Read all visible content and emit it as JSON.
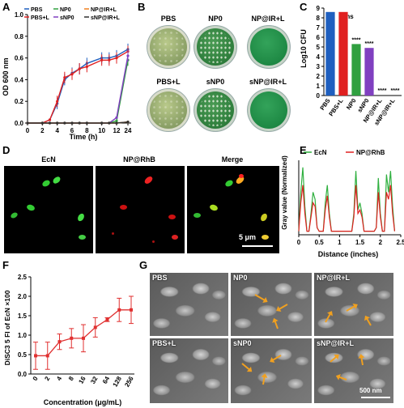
{
  "panels": {
    "A": "A",
    "B": "B",
    "C": "C",
    "D": "D",
    "E": "E",
    "F": "F",
    "G": "G"
  },
  "panelA": {
    "ylabel": "OD 600 nm",
    "xlabel": "Time (h)",
    "legend": [
      "PBS",
      "NP0",
      "NP@IR+L",
      "PBS+L",
      "sNP0",
      "sNP@IR+L"
    ]
  },
  "panelB": {
    "labels": [
      "PBS",
      "NP0",
      "NP@IR+L",
      "PBS+L",
      "sNP0",
      "sNP@IR+L"
    ]
  },
  "panelC": {
    "ylabel": "Log10 CFU",
    "ns": "ns",
    "stars": [
      "****",
      "****",
      "****",
      "****"
    ]
  },
  "panelD": {
    "titles": [
      "EcN",
      "NP@RhB",
      "Merge"
    ],
    "scale": "5 μm"
  },
  "panelE": {
    "ylabel": "Gray value (Normalized)",
    "xlabel": "Distance (inches)",
    "legend": [
      "EcN",
      "NP@RhB"
    ]
  },
  "panelF": {
    "ylabel": "DiSC3 5 FI of EcN ×100",
    "xlabel": "Concentration (μg/mL)"
  },
  "panelG": {
    "labels": [
      "PBS",
      "NP0",
      "NP@IR+L",
      "PBS+L",
      "sNP0",
      "sNP@IR+L"
    ],
    "scale": "500 nm"
  },
  "chart_data": [
    {
      "id": "A",
      "type": "line",
      "xlabel": "Time (h)",
      "ylabel": "OD 600 nm",
      "x": [
        0,
        2,
        3,
        4,
        5,
        6,
        7,
        8,
        10,
        11,
        12,
        24
      ],
      "xticks": [
        "0",
        "2",
        "4",
        "6",
        "8",
        "10",
        "12",
        "24"
      ],
      "ylim": [
        0,
        1.0
      ],
      "yticks": [
        0,
        0.2,
        0.4,
        0.6,
        0.8,
        1.0
      ],
      "series": [
        {
          "name": "PBS",
          "color": "#1f5fbf",
          "values": [
            0.0,
            0.0,
            0.03,
            0.18,
            0.4,
            0.46,
            0.5,
            0.55,
            0.6,
            0.6,
            0.62,
            0.68
          ]
        },
        {
          "name": "PBS+L",
          "color": "#e02020",
          "values": [
            0.0,
            0.0,
            0.03,
            0.2,
            0.42,
            0.45,
            0.5,
            0.52,
            0.58,
            0.58,
            0.6,
            0.66
          ]
        },
        {
          "name": "NP0",
          "color": "#30a040",
          "values": [
            0.0,
            0.0,
            0.0,
            0.0,
            0.0,
            0.0,
            0.0,
            0.0,
            0.0,
            0.0,
            0.02,
            0.58
          ]
        },
        {
          "name": "sNP0",
          "color": "#8040c0",
          "values": [
            0.0,
            0.0,
            0.0,
            0.0,
            0.0,
            0.0,
            0.0,
            0.0,
            0.0,
            0.0,
            0.05,
            0.62
          ]
        },
        {
          "name": "NP@IR+L",
          "color": "#f08020",
          "values": [
            0.0,
            0.0,
            0.0,
            0.0,
            0.0,
            0.0,
            0.0,
            0.0,
            0.0,
            0.0,
            0.0,
            0.01
          ]
        },
        {
          "name": "sNP@IR+L",
          "color": "#303030",
          "values": [
            0.0,
            0.0,
            0.0,
            0.0,
            0.0,
            0.0,
            0.0,
            0.0,
            0.0,
            0.0,
            0.0,
            0.01
          ]
        }
      ]
    },
    {
      "id": "C",
      "type": "bar",
      "ylabel": "Log10 CFU",
      "categories": [
        "PBS",
        "PBS+L",
        "NP0",
        "sNP0",
        "NP@IR+L",
        "sNP@IR+L"
      ],
      "values": [
        8.6,
        8.6,
        5.3,
        4.9,
        0,
        0
      ],
      "colors": [
        "#1f5fbf",
        "#e02020",
        "#30a040",
        "#8040c0",
        "#f08020",
        "#303030"
      ],
      "ylim": [
        0,
        9
      ],
      "yticks": [
        0,
        1,
        2,
        3,
        4,
        5,
        6,
        7,
        8,
        9
      ]
    },
    {
      "id": "E",
      "type": "line",
      "xlabel": "Distance (inches)",
      "ylabel": "Gray value (Normalized)",
      "xlim": [
        0,
        2.5
      ],
      "xticks": [
        0,
        0.5,
        1.0,
        1.5,
        2.0,
        2.5
      ],
      "ylim": [
        0,
        1.05
      ],
      "series": [
        {
          "name": "EcN",
          "color": "#30b040",
          "x": [
            0,
            0.05,
            0.1,
            0.15,
            0.2,
            0.25,
            0.3,
            0.35,
            0.4,
            0.45,
            0.5,
            0.55,
            0.6,
            0.65,
            0.7,
            0.75,
            0.8,
            0.85,
            0.9,
            0.95,
            1.0,
            1.05,
            1.1,
            1.15,
            1.2,
            1.25,
            1.3,
            1.35,
            1.4,
            1.45,
            1.5,
            1.55,
            1.6,
            1.65,
            1.7,
            1.75,
            1.8,
            1.85,
            1.9,
            1.95,
            2.0,
            2.05,
            2.1,
            2.15,
            2.2,
            2.25,
            2.3,
            2.35
          ],
          "values": [
            0.05,
            0.6,
            0.95,
            0.4,
            0.05,
            0.05,
            0.3,
            0.6,
            0.5,
            0.1,
            0.05,
            0.05,
            0.05,
            0.45,
            0.7,
            0.3,
            0.05,
            0.05,
            0.05,
            0.05,
            0.05,
            0.05,
            0.05,
            0.05,
            0.05,
            0.05,
            0.05,
            0.3,
            0.9,
            0.35,
            0.45,
            0.3,
            0.05,
            0.05,
            0.05,
            0.05,
            0.05,
            0.05,
            0.1,
            0.8,
            0.3,
            0.05,
            0.05,
            0.85,
            0.6,
            0.9,
            0.4,
            0.05
          ]
        },
        {
          "name": "NP@RhB",
          "color": "#e02020",
          "x": [
            0,
            0.05,
            0.1,
            0.15,
            0.2,
            0.25,
            0.3,
            0.35,
            0.4,
            0.45,
            0.5,
            0.55,
            0.6,
            0.65,
            0.7,
            0.75,
            0.8,
            0.85,
            0.9,
            0.95,
            1.0,
            1.05,
            1.1,
            1.15,
            1.2,
            1.25,
            1.3,
            1.35,
            1.4,
            1.45,
            1.5,
            1.55,
            1.6,
            1.65,
            1.7,
            1.75,
            1.8,
            1.85,
            1.9,
            1.95,
            2.0,
            2.05,
            2.1,
            2.15,
            2.2,
            2.25,
            2.3,
            2.35
          ],
          "values": [
            0.05,
            0.45,
            0.7,
            0.3,
            0.05,
            0.05,
            0.25,
            0.45,
            0.4,
            0.1,
            0.05,
            0.05,
            0.05,
            0.35,
            0.55,
            0.25,
            0.05,
            0.05,
            0.05,
            0.05,
            0.05,
            0.05,
            0.05,
            0.05,
            0.05,
            0.05,
            0.05,
            0.25,
            0.7,
            0.3,
            0.35,
            0.25,
            0.05,
            0.05,
            0.05,
            0.05,
            0.05,
            0.05,
            0.1,
            0.6,
            0.25,
            0.05,
            0.05,
            0.6,
            0.5,
            0.7,
            0.3,
            0.05
          ]
        }
      ]
    },
    {
      "id": "F",
      "type": "line",
      "xlabel": "Concentration (μg/mL)",
      "ylabel": "DiSC3 5 FI of EcN ×100",
      "categories": [
        "0",
        "2",
        "4",
        "8",
        "16",
        "32",
        "64",
        "128",
        "256"
      ],
      "values": [
        0.47,
        0.47,
        0.83,
        0.92,
        0.92,
        1.2,
        1.4,
        1.65,
        1.65
      ],
      "errors": [
        0.35,
        0.35,
        0.2,
        0.25,
        0.35,
        0.25,
        0.05,
        0.3,
        0.35
      ],
      "color": "#e03030",
      "ylim": [
        0,
        2.5
      ],
      "yticks": [
        0,
        0.5,
        1.0,
        1.5,
        2.0,
        2.5
      ]
    }
  ]
}
